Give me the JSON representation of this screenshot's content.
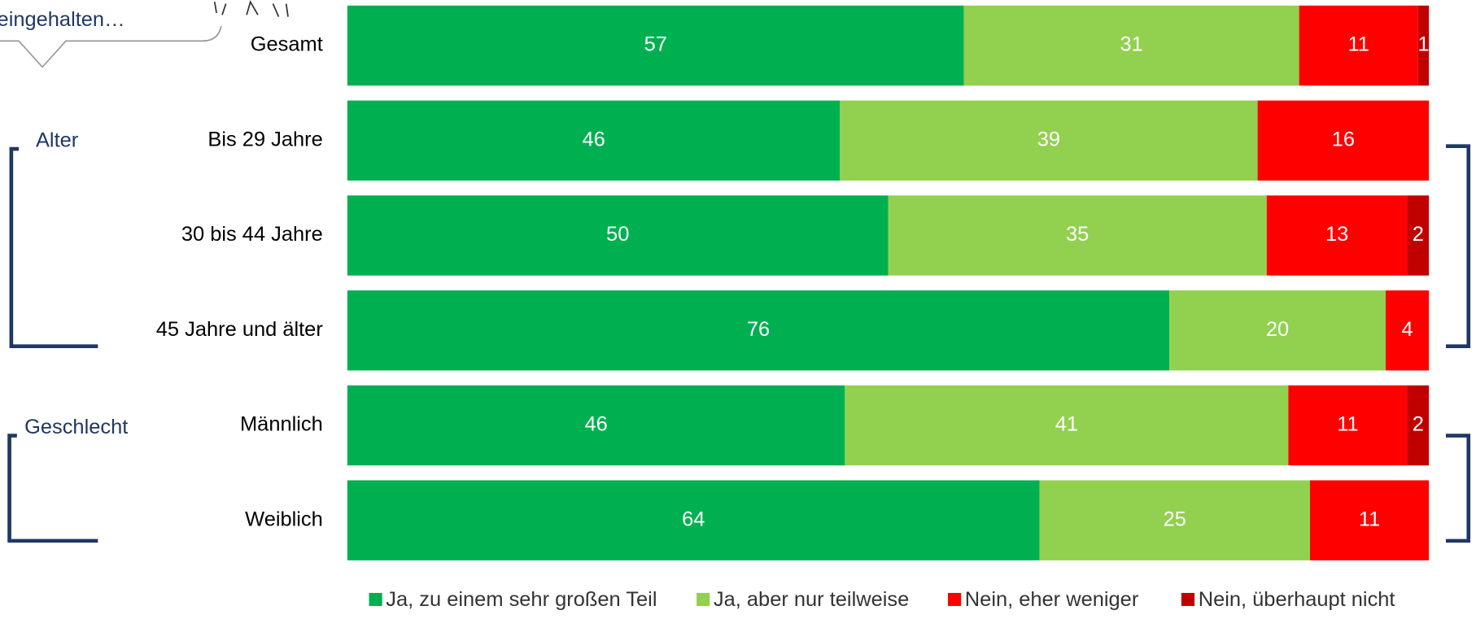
{
  "chart_data": {
    "type": "stacked-barh",
    "annotations": [
      "eingehalten…",
      "Alter",
      "Geschlecht"
    ],
    "categories": [
      "Gesamt",
      "Bis 29 Jahre",
      "30 bis 44 Jahre",
      "45 Jahre und älter",
      "Männlich",
      "Weiblich"
    ],
    "series": [
      {
        "name": "Ja, zu einem sehr großen Teil",
        "color": "#00b050",
        "values": [
          57,
          46,
          50,
          76,
          46,
          64
        ]
      },
      {
        "name": "Ja, aber nur teilweise",
        "color": "#92d050",
        "values": [
          31,
          39,
          35,
          20,
          41,
          25
        ]
      },
      {
        "name": "Nein, eher weniger",
        "color": "#ff0000",
        "values": [
          11,
          16,
          13,
          4,
          11,
          11
        ]
      },
      {
        "name": "Nein, überhaupt nicht",
        "color": "#c00000",
        "values": [
          1,
          null,
          2,
          null,
          2,
          null
        ]
      }
    ],
    "legend": "bottom"
  }
}
